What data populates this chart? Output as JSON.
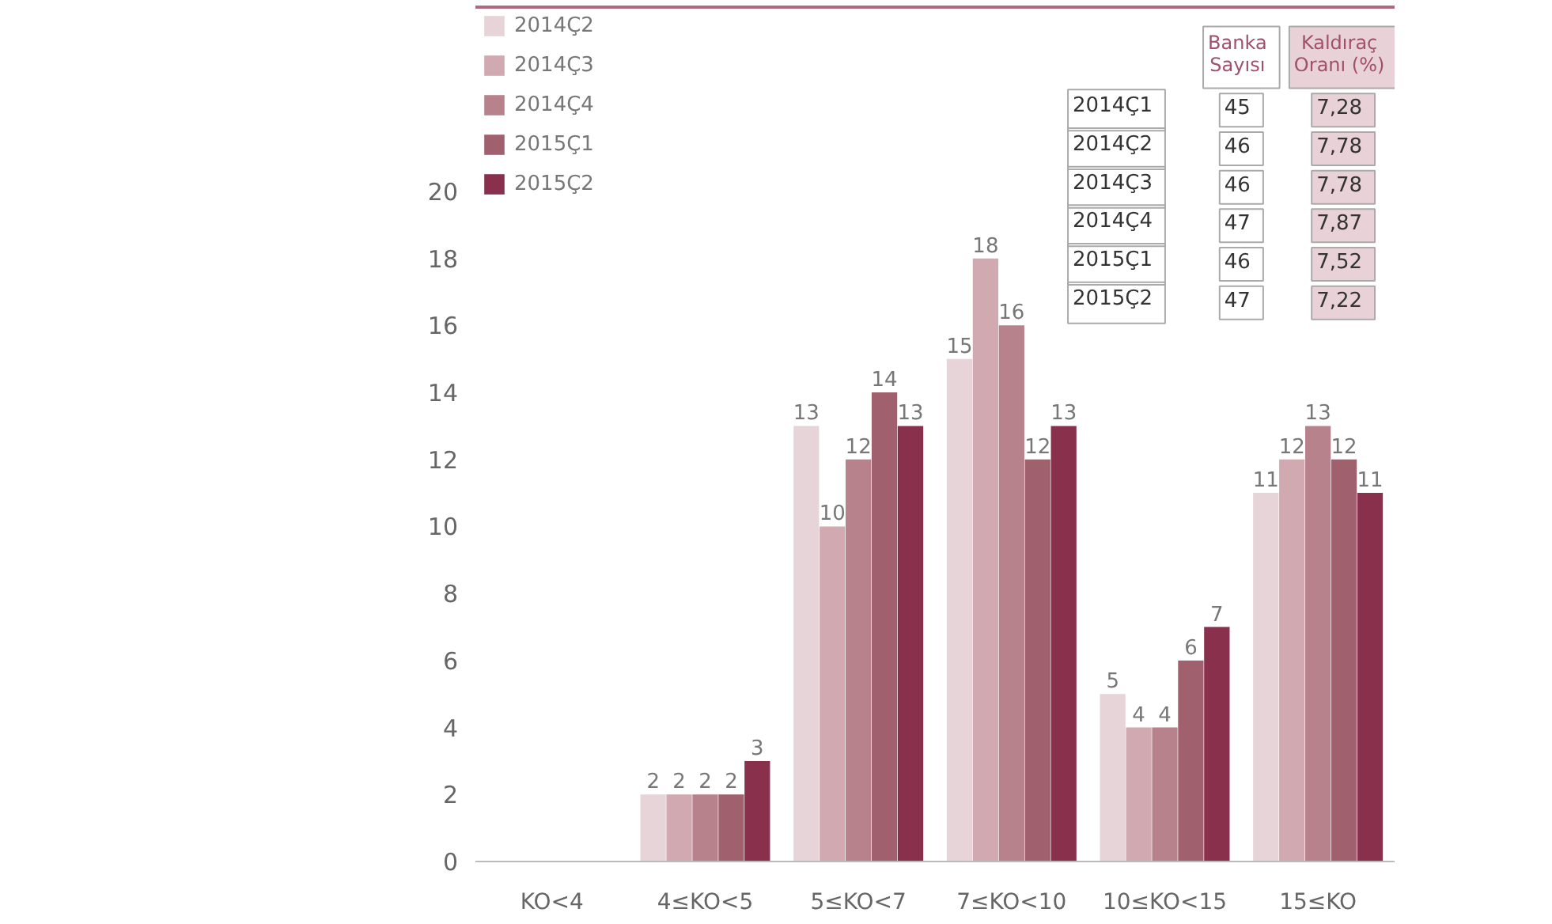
{
  "chart_data": {
    "type": "bar",
    "categories": [
      "KO<4",
      "4≤KO<5",
      "5≤KO<7",
      "7≤KO<10",
      "10≤KO<15",
      "15≤KO"
    ],
    "series": [
      {
        "name": "2014Ç2",
        "color": "#e6d4d8",
        "values": [
          0,
          2,
          13,
          15,
          5,
          11
        ],
        "value_labels": [
          null,
          "2",
          "13",
          "15",
          "5",
          "11"
        ]
      },
      {
        "name": "2014Ç3",
        "color": "#d0a9b1",
        "values": [
          0,
          2,
          10,
          18,
          4,
          12
        ],
        "value_labels": [
          null,
          "2",
          "10",
          "18",
          "4",
          "12"
        ]
      },
      {
        "name": "2014Ç4",
        "color": "#b8828d",
        "values": [
          0,
          2,
          12,
          16,
          4,
          13
        ],
        "value_labels": [
          null,
          "2",
          "12",
          "16",
          "4",
          "13"
        ]
      },
      {
        "name": "2015Ç1",
        "color": "#a1606e",
        "values": [
          0,
          2,
          14,
          12,
          6,
          12
        ],
        "value_labels": [
          null,
          "2",
          "14",
          "12",
          "6",
          "12"
        ]
      },
      {
        "name": "2015Ç2",
        "color": "#88304c",
        "values": [
          0,
          3,
          13,
          13,
          7,
          11
        ],
        "value_labels": [
          null,
          "3",
          "13",
          "13",
          "7",
          "11"
        ]
      }
    ],
    "ylim": [
      0,
      25.5
    ],
    "yticks": [
      0,
      2,
      4,
      6,
      8,
      10,
      12,
      14,
      16,
      18,
      20
    ],
    "grid": false,
    "legend": "top left",
    "annotations": [
      "Banka Sayısı",
      "Kaldıraç Oranı (%)",
      "2014Ç1",
      "45",
      "7,28",
      "2014Ç2",
      "46",
      "7,78",
      "2014Ç3",
      "46",
      "7,78",
      "2014Ç4",
      "47",
      "7,87",
      "2015Ç1",
      "46",
      "7,52",
      "2015Ç2",
      "47",
      "7,22"
    ]
  }
}
